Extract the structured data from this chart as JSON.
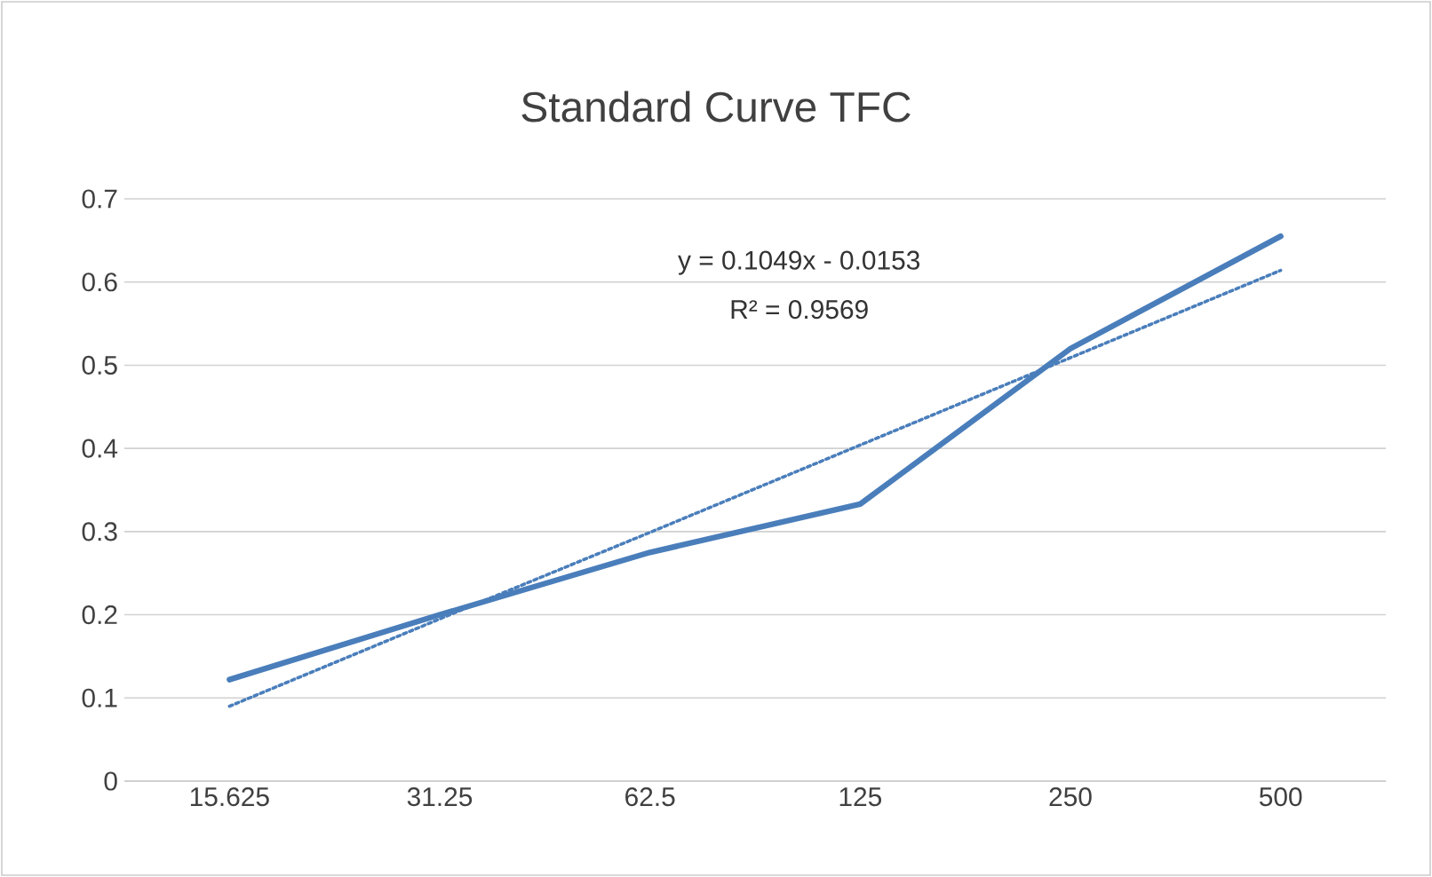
{
  "chart_data": {
    "type": "line",
    "title": "Standard Curve TFC",
    "categories": [
      "15.625",
      "31.25",
      "62.5",
      "125",
      "250",
      "500"
    ],
    "series": [
      {
        "color": "#4a7ebb",
        "values": [
          0.122,
          0.2,
          0.275,
          0.333,
          0.52,
          0.655
        ],
        "line_style": "solid"
      },
      {
        "color": "#4a7ebb",
        "values": [
          0.09,
          0.195,
          0.299,
          0.404,
          0.509,
          0.614
        ],
        "line_style": "dotted"
      }
    ],
    "ylim": [
      0,
      0.7
    ],
    "yticks": [
      0,
      0.1,
      0.2,
      0.3,
      0.4,
      0.5,
      0.6,
      0.7
    ],
    "grid": "y",
    "marker": "none",
    "annotations": [
      "y = 0.1049x - 0.0153",
      "R² = 0.9569"
    ]
  }
}
